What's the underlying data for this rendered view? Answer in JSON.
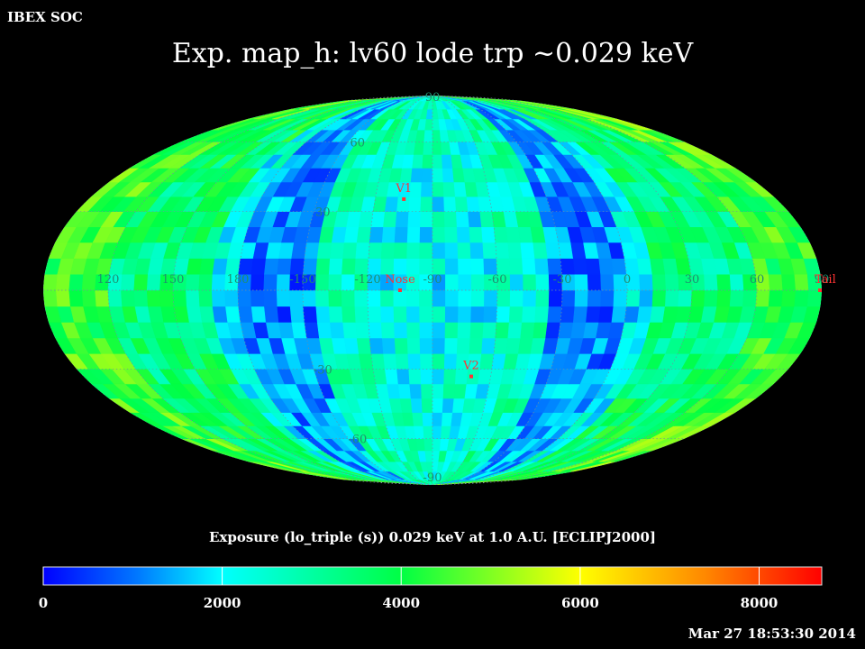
{
  "header": {
    "label": "IBEX SOC"
  },
  "title": "Exp.   map_h: lv60 lode trp ~0.029 keV",
  "timestamp": "Mar 27 18:53:30 2014",
  "chart_data": {
    "type": "heatmap",
    "projection": "mollweide",
    "title": "Exp.   map_h: lv60 lode trp ~0.029 keV",
    "colorbar": {
      "label": "Exposure (lo_triple (s))  0.029 keV at 1.0 A.U. [ECLIPJ2000]",
      "range": [
        0,
        8700
      ],
      "ticks": [
        "0",
        "2000",
        "4000",
        "6000",
        "8000"
      ],
      "tick_values": [
        0,
        2000,
        4000,
        6000,
        8000
      ],
      "colors": [
        "#0000ff",
        "#0077ff",
        "#00ffff",
        "#00ff44",
        "#ffff00",
        "#ff8800",
        "#ff0000"
      ]
    },
    "longitude_labels": [
      {
        "text": "60",
        "lon": 60
      },
      {
        "text": "30",
        "lon": 30
      },
      {
        "text": "0",
        "lon": 0
      },
      {
        "text": "-30",
        "lon": -30
      },
      {
        "text": "-60",
        "lon": -60
      },
      {
        "text": "-90",
        "lon": -90
      },
      {
        "text": "-120",
        "lon": -120
      },
      {
        "text": "-150",
        "lon": -150
      },
      {
        "text": "180",
        "lon": 180
      },
      {
        "text": "150",
        "lon": 150
      },
      {
        "text": "120",
        "lon": 120
      },
      {
        "text": "90",
        "lon": 90
      }
    ],
    "latitude_labels": [
      {
        "text": "90",
        "lat": 90
      },
      {
        "text": "60",
        "lat": 60
      },
      {
        "text": "30",
        "lat": 30
      },
      {
        "text": "-30",
        "lat": -30
      },
      {
        "text": "-60",
        "lat": -60
      },
      {
        "text": "-90",
        "lat": -90
      }
    ],
    "markers": [
      {
        "label": "V1",
        "lon": -105,
        "lat": 35
      },
      {
        "label": "Nose",
        "lon": -105,
        "lat": 0
      },
      {
        "label": "V2",
        "lon": -70,
        "lat": -33
      },
      {
        "label": "Tail",
        "lon": 75,
        "lat": 0
      }
    ],
    "colors": {
      "marker": "#ff3333",
      "grid_label": "#1f8f6f",
      "grid_line": "#6f8fa0"
    }
  }
}
